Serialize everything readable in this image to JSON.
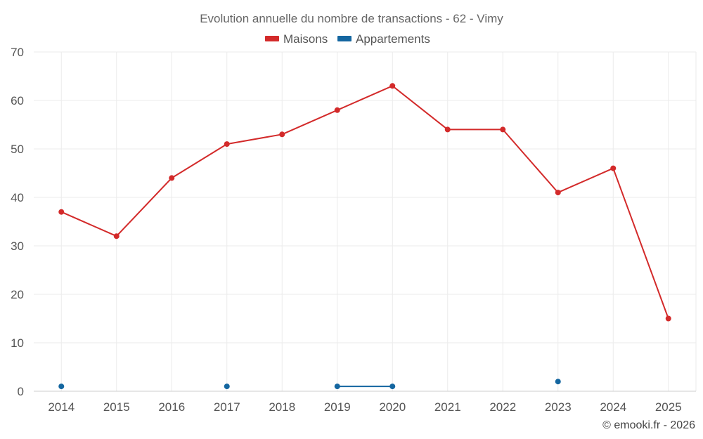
{
  "chart_data": {
    "type": "line",
    "title": "Evolution annuelle du nombre de transactions - 62 - Vimy",
    "categories": [
      "2014",
      "2015",
      "2016",
      "2017",
      "2018",
      "2019",
      "2020",
      "2021",
      "2022",
      "2023",
      "2024",
      "2025"
    ],
    "series": [
      {
        "name": "Maisons",
        "color": "#d32a2a",
        "values": [
          37,
          32,
          44,
          51,
          53,
          58,
          63,
          54,
          54,
          41,
          46,
          15
        ]
      },
      {
        "name": "Appartements",
        "color": "#1466a0",
        "values": [
          1,
          null,
          null,
          1,
          null,
          1,
          1,
          null,
          null,
          2,
          null,
          null
        ]
      }
    ],
    "ylim": [
      0,
      70
    ],
    "yticks": [
      0,
      10,
      20,
      30,
      40,
      50,
      60,
      70
    ],
    "grid": true,
    "legend_position": "top-center",
    "credit": "© emooki.fr - 2026"
  }
}
